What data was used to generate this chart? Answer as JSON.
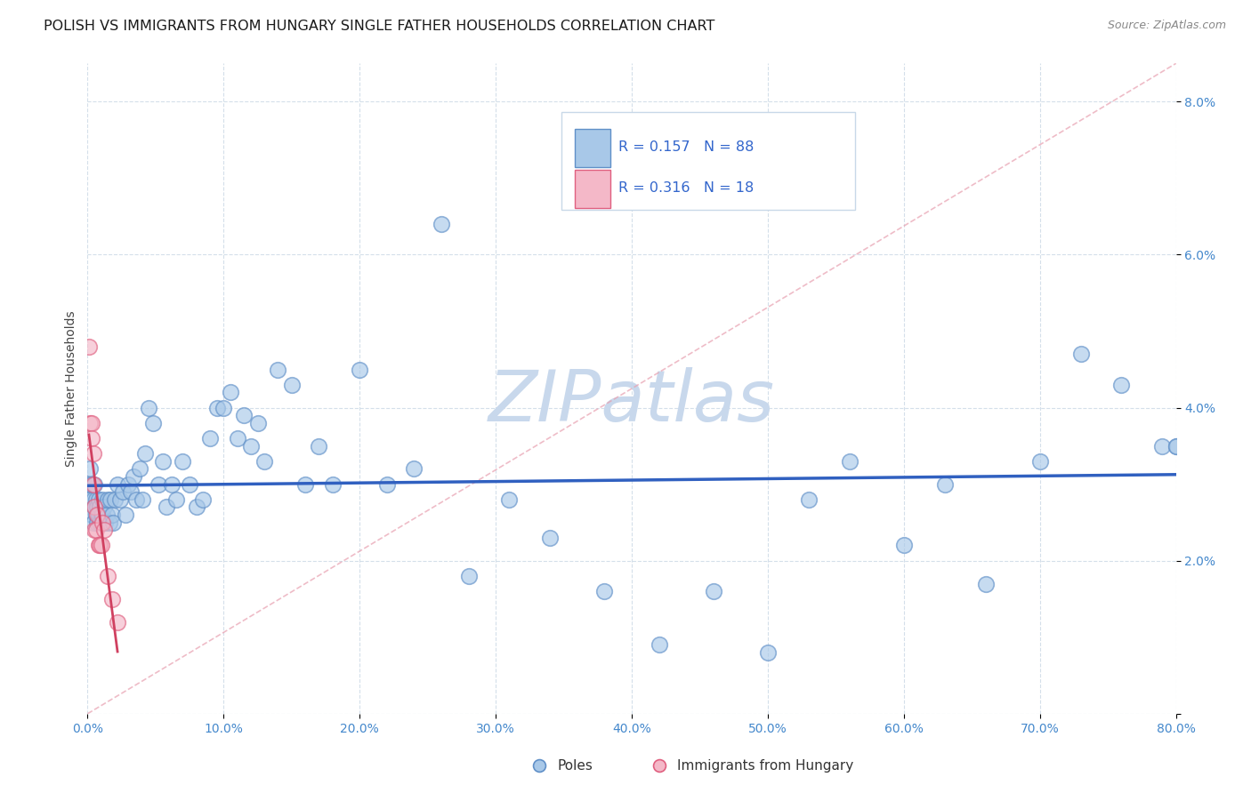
{
  "title": "POLISH VS IMMIGRANTS FROM HUNGARY SINGLE FATHER HOUSEHOLDS CORRELATION CHART",
  "source": "Source: ZipAtlas.com",
  "ylabel": "Single Father Households",
  "xlim": [
    0,
    0.8
  ],
  "ylim": [
    0,
    0.085
  ],
  "xticks": [
    0.0,
    0.1,
    0.2,
    0.3,
    0.4,
    0.5,
    0.6,
    0.7,
    0.8
  ],
  "xticklabels": [
    "0.0%",
    "10.0%",
    "20.0%",
    "30.0%",
    "40.0%",
    "50.0%",
    "60.0%",
    "70.0%",
    "80.0%"
  ],
  "yticks": [
    0.0,
    0.02,
    0.04,
    0.06,
    0.08
  ],
  "yticklabels": [
    "",
    "2.0%",
    "4.0%",
    "6.0%",
    "8.0%"
  ],
  "legend_labels": [
    "Poles",
    "Immigrants from Hungary"
  ],
  "R_poles": 0.157,
  "N_poles": 88,
  "R_hungary": 0.316,
  "N_hungary": 18,
  "poles_color": "#a8c8e8",
  "hungary_color": "#f4b8c8",
  "poles_edge_color": "#6090c8",
  "hungary_edge_color": "#e06080",
  "poles_line_color": "#3060c0",
  "hungary_line_color": "#d04060",
  "diag_line_color": "#e8a0b0",
  "watermark": "ZIPatlas",
  "watermark_color": "#c8d8ec",
  "title_fontsize": 11.5,
  "axis_label_fontsize": 10,
  "tick_fontsize": 10,
  "poles_x": [
    0.001,
    0.002,
    0.002,
    0.003,
    0.003,
    0.004,
    0.004,
    0.005,
    0.005,
    0.006,
    0.006,
    0.007,
    0.007,
    0.008,
    0.008,
    0.009,
    0.009,
    0.01,
    0.01,
    0.011,
    0.011,
    0.012,
    0.013,
    0.014,
    0.015,
    0.016,
    0.017,
    0.018,
    0.019,
    0.02,
    0.022,
    0.024,
    0.026,
    0.028,
    0.03,
    0.032,
    0.034,
    0.036,
    0.038,
    0.04,
    0.042,
    0.045,
    0.048,
    0.052,
    0.055,
    0.058,
    0.062,
    0.065,
    0.07,
    0.075,
    0.08,
    0.085,
    0.09,
    0.095,
    0.1,
    0.105,
    0.11,
    0.115,
    0.12,
    0.125,
    0.13,
    0.14,
    0.15,
    0.16,
    0.17,
    0.18,
    0.2,
    0.22,
    0.24,
    0.26,
    0.28,
    0.31,
    0.34,
    0.38,
    0.42,
    0.46,
    0.5,
    0.53,
    0.56,
    0.6,
    0.63,
    0.66,
    0.7,
    0.73,
    0.76,
    0.79,
    0.8,
    0.8
  ],
  "poles_y": [
    0.03,
    0.028,
    0.032,
    0.026,
    0.03,
    0.025,
    0.028,
    0.027,
    0.03,
    0.026,
    0.028,
    0.025,
    0.027,
    0.026,
    0.028,
    0.025,
    0.027,
    0.025,
    0.026,
    0.026,
    0.028,
    0.027,
    0.025,
    0.026,
    0.028,
    0.025,
    0.028,
    0.026,
    0.025,
    0.028,
    0.03,
    0.028,
    0.029,
    0.026,
    0.03,
    0.029,
    0.031,
    0.028,
    0.032,
    0.028,
    0.034,
    0.04,
    0.038,
    0.03,
    0.033,
    0.027,
    0.03,
    0.028,
    0.033,
    0.03,
    0.027,
    0.028,
    0.036,
    0.04,
    0.04,
    0.042,
    0.036,
    0.039,
    0.035,
    0.038,
    0.033,
    0.045,
    0.043,
    0.03,
    0.035,
    0.03,
    0.045,
    0.03,
    0.032,
    0.064,
    0.018,
    0.028,
    0.023,
    0.016,
    0.009,
    0.016,
    0.008,
    0.028,
    0.033,
    0.022,
    0.03,
    0.017,
    0.033,
    0.047,
    0.043,
    0.035,
    0.035,
    0.035
  ],
  "hungary_x": [
    0.001,
    0.002,
    0.003,
    0.003,
    0.004,
    0.004,
    0.005,
    0.005,
    0.006,
    0.007,
    0.008,
    0.009,
    0.01,
    0.011,
    0.012,
    0.015,
    0.018,
    0.022
  ],
  "hungary_y": [
    0.048,
    0.038,
    0.038,
    0.036,
    0.034,
    0.03,
    0.027,
    0.024,
    0.024,
    0.026,
    0.022,
    0.022,
    0.022,
    0.025,
    0.024,
    0.018,
    0.015,
    0.012
  ]
}
